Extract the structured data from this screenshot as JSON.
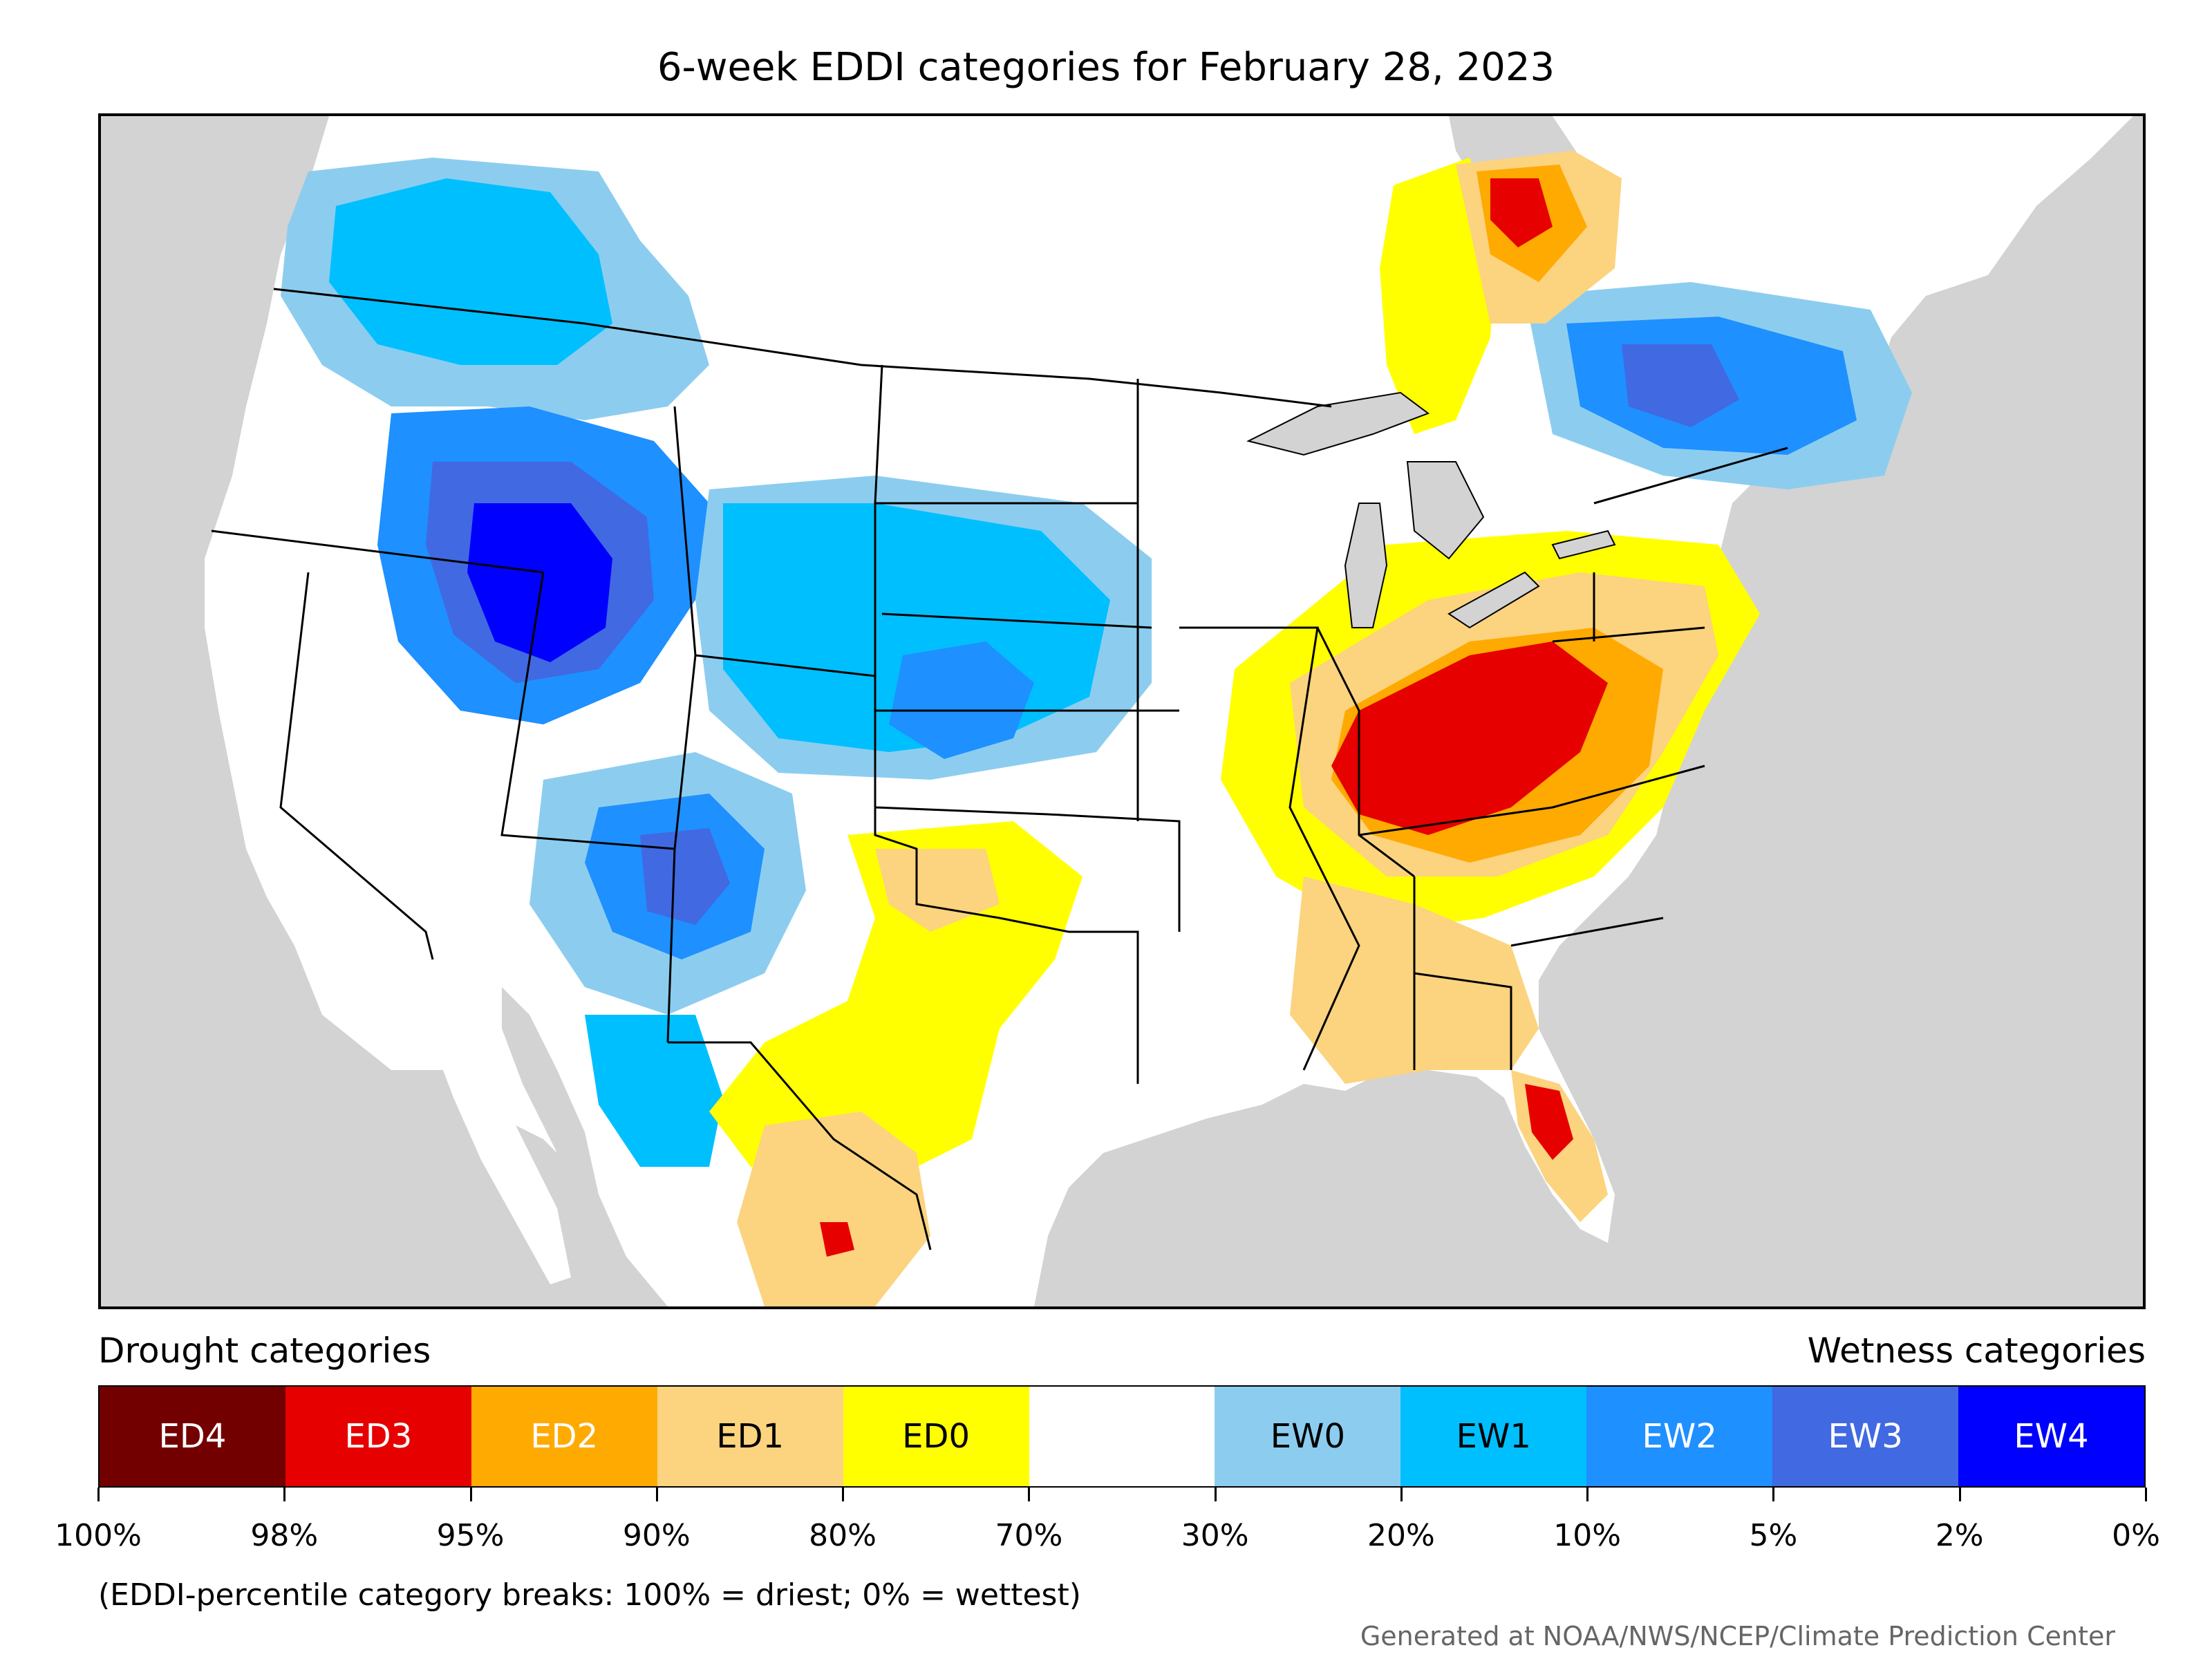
{
  "title": "6-week EDDI categories for February 28, 2023",
  "legend": {
    "drought_heading": "Drought categories",
    "wetness_heading": "Wetness categories",
    "categories": [
      {
        "label": "ED4",
        "color": "#730000",
        "text_color": "#ffffff"
      },
      {
        "label": "ED3",
        "color": "#e60000",
        "text_color": "#ffffff"
      },
      {
        "label": "ED2",
        "color": "#ffaa00",
        "text_color": "#ffffff"
      },
      {
        "label": "ED1",
        "color": "#fcd37f",
        "text_color": "#000000"
      },
      {
        "label": "ED0",
        "color": "#ffff00",
        "text_color": "#000000"
      },
      {
        "label": "",
        "color": "#ffffff",
        "text_color": "#000000"
      },
      {
        "label": "EW0",
        "color": "#8ccdef",
        "text_color": "#000000"
      },
      {
        "label": "EW1",
        "color": "#00bfff",
        "text_color": "#000000"
      },
      {
        "label": "EW2",
        "color": "#1e90ff",
        "text_color": "#ffffff"
      },
      {
        "label": "EW3",
        "color": "#4169e1",
        "text_color": "#ffffff"
      },
      {
        "label": "EW4",
        "color": "#0000ff",
        "text_color": "#ffffff"
      }
    ],
    "ticks": [
      "100%",
      "98%",
      "95%",
      "90%",
      "80%",
      "70%",
      "30%",
      "20%",
      "10%",
      "5%",
      "2%",
      "0%"
    ]
  },
  "note": "(EDDI-percentile category breaks: 100% = driest; 0% = wettest)",
  "credit": "Generated at NOAA/NWS/NCEP/Climate Prediction Center",
  "map": {
    "ocean_color": "#d3d3d3",
    "land_color": "#ffffff",
    "regions": [
      {
        "name": "northern-rockies-wet",
        "category": "EW1"
      },
      {
        "name": "great-basin-wet",
        "category": "EW3"
      },
      {
        "name": "central-plains-wet",
        "category": "EW1"
      },
      {
        "name": "southwest-wet",
        "category": "EW2"
      },
      {
        "name": "ohio-valley-dry",
        "category": "ED3"
      },
      {
        "name": "mid-atlantic-dry",
        "category": "ED1"
      },
      {
        "name": "southeast-dry",
        "category": "ED1"
      },
      {
        "name": "florida-dry",
        "category": "ED3"
      },
      {
        "name": "south-texas-dry",
        "category": "ED1"
      },
      {
        "name": "quebec-wet",
        "category": "EW2"
      },
      {
        "name": "ontario-dry",
        "category": "ED2"
      }
    ]
  }
}
